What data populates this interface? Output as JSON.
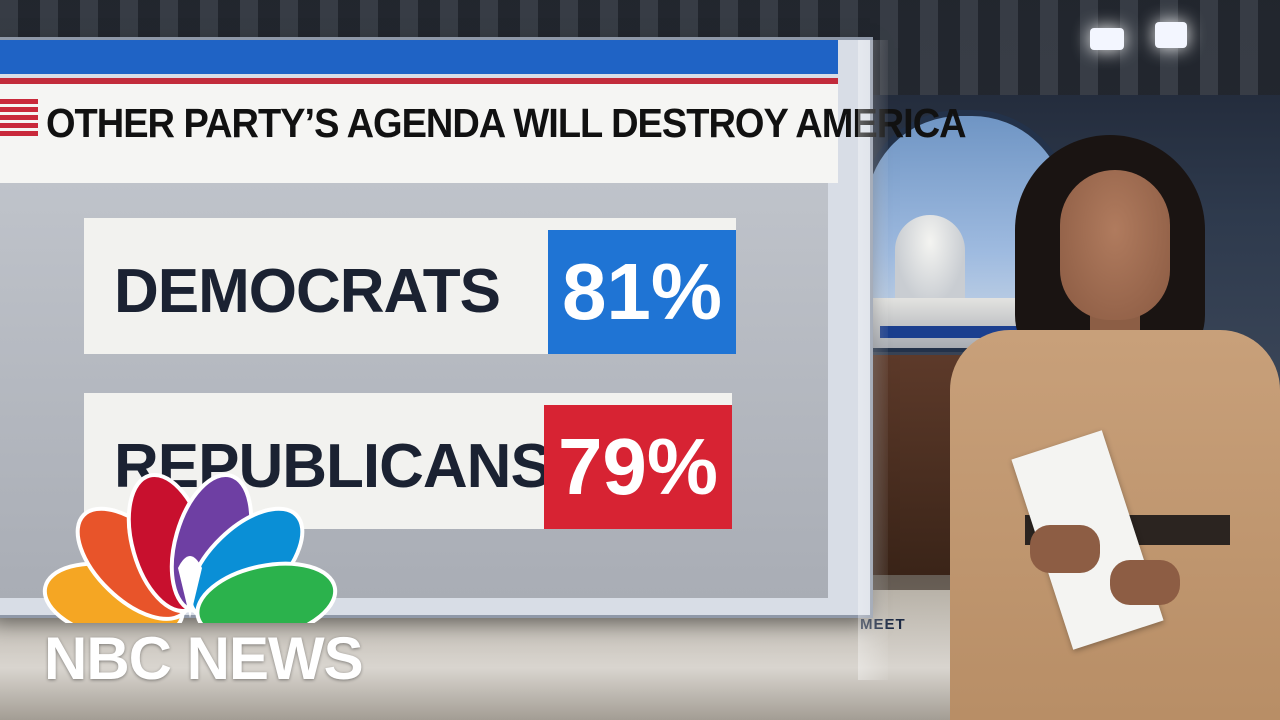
{
  "graphic": {
    "title": "OTHER PARTY’S AGENDA WILL DESTROY AMERICA",
    "rows": [
      {
        "label": "DEMOCRATS",
        "value": "81%",
        "color": "#1f74d4"
      },
      {
        "label": "REPUBLICANS",
        "value": "79%",
        "color": "#d72333"
      }
    ]
  },
  "logo": {
    "name": "NBC NEWS",
    "icon": "nbc-peacock-icon",
    "feather_colors": [
      "#f5a623",
      "#e8542a",
      "#c8102e",
      "#6e3fa3",
      "#0a8fd6",
      "#2bb24c"
    ]
  },
  "scene": {
    "floor_text": "MEET"
  }
}
